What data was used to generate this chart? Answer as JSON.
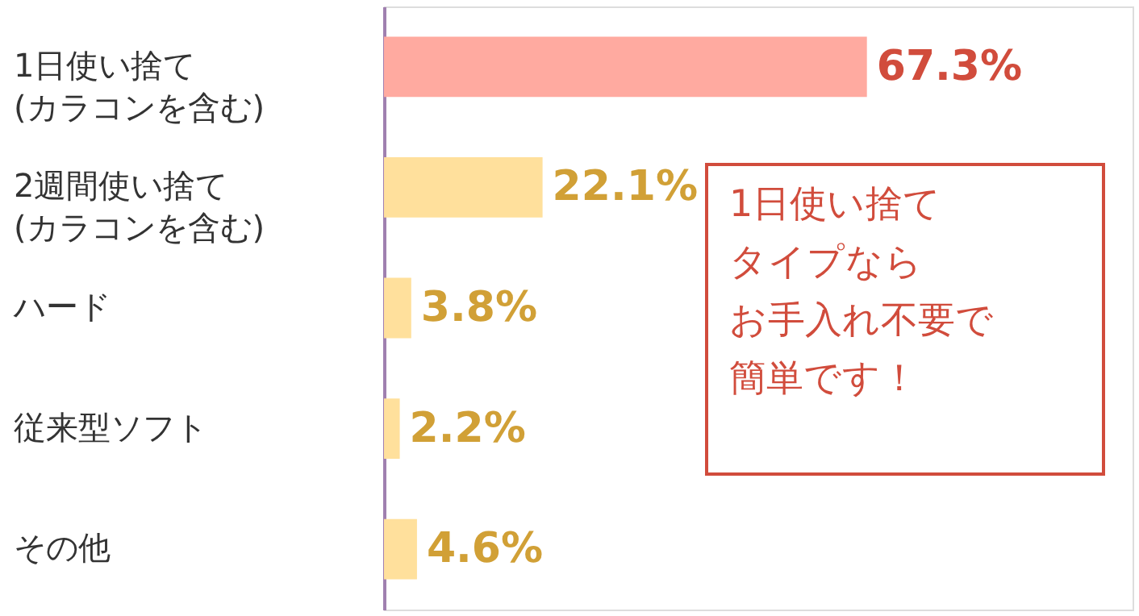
{
  "chart_data": {
    "type": "bar",
    "orientation": "horizontal",
    "categories": [
      "1日使い捨て\n(カラコンを含む)",
      "2週間使い捨て\n(カラコンを含む)",
      "ハード",
      "従来型ソフト",
      "その他"
    ],
    "values": [
      67.3,
      22.1,
      3.8,
      2.2,
      4.6
    ],
    "colors": [
      "#ffaaa0",
      "#ffe09c",
      "#ffe09c",
      "#ffe09c",
      "#ffe09c"
    ],
    "value_labels": [
      "67.3%",
      "22.1%",
      "3.8%",
      "2.2%",
      "4.6%"
    ],
    "annotations": [
      "1日使い捨て",
      "タイプなら",
      "お手入れ不要で",
      "簡単です！"
    ],
    "grid": false
  }
}
